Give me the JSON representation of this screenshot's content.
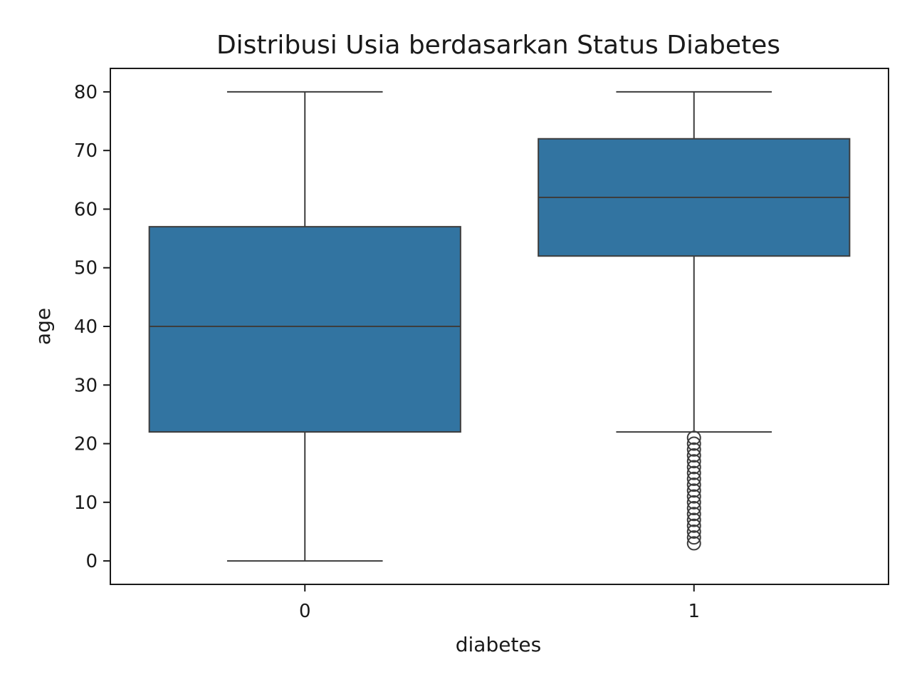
{
  "chart_data": {
    "type": "box",
    "title": "Distribusi Usia berdasarkan Status Diabetes",
    "xlabel": "diabetes",
    "ylabel": "age",
    "categories": [
      "0",
      "1"
    ],
    "ylim": [
      -4,
      84
    ],
    "yticks": [
      0,
      10,
      20,
      30,
      40,
      50,
      60,
      70,
      80
    ],
    "color": "#3274a1",
    "line_color": "#3d3d3d",
    "grid": false,
    "boxes": [
      {
        "category": "0",
        "whisker_low": 0,
        "q1": 22,
        "median": 40,
        "q3": 57,
        "whisker_high": 80,
        "outliers": []
      },
      {
        "category": "1",
        "whisker_low": 22,
        "q1": 52,
        "median": 62,
        "q3": 72,
        "whisker_high": 80,
        "outliers": [
          21,
          20,
          19,
          18,
          17,
          16,
          15,
          14,
          13,
          12,
          11,
          10,
          9,
          8,
          7,
          6,
          5,
          4,
          3
        ]
      }
    ]
  }
}
